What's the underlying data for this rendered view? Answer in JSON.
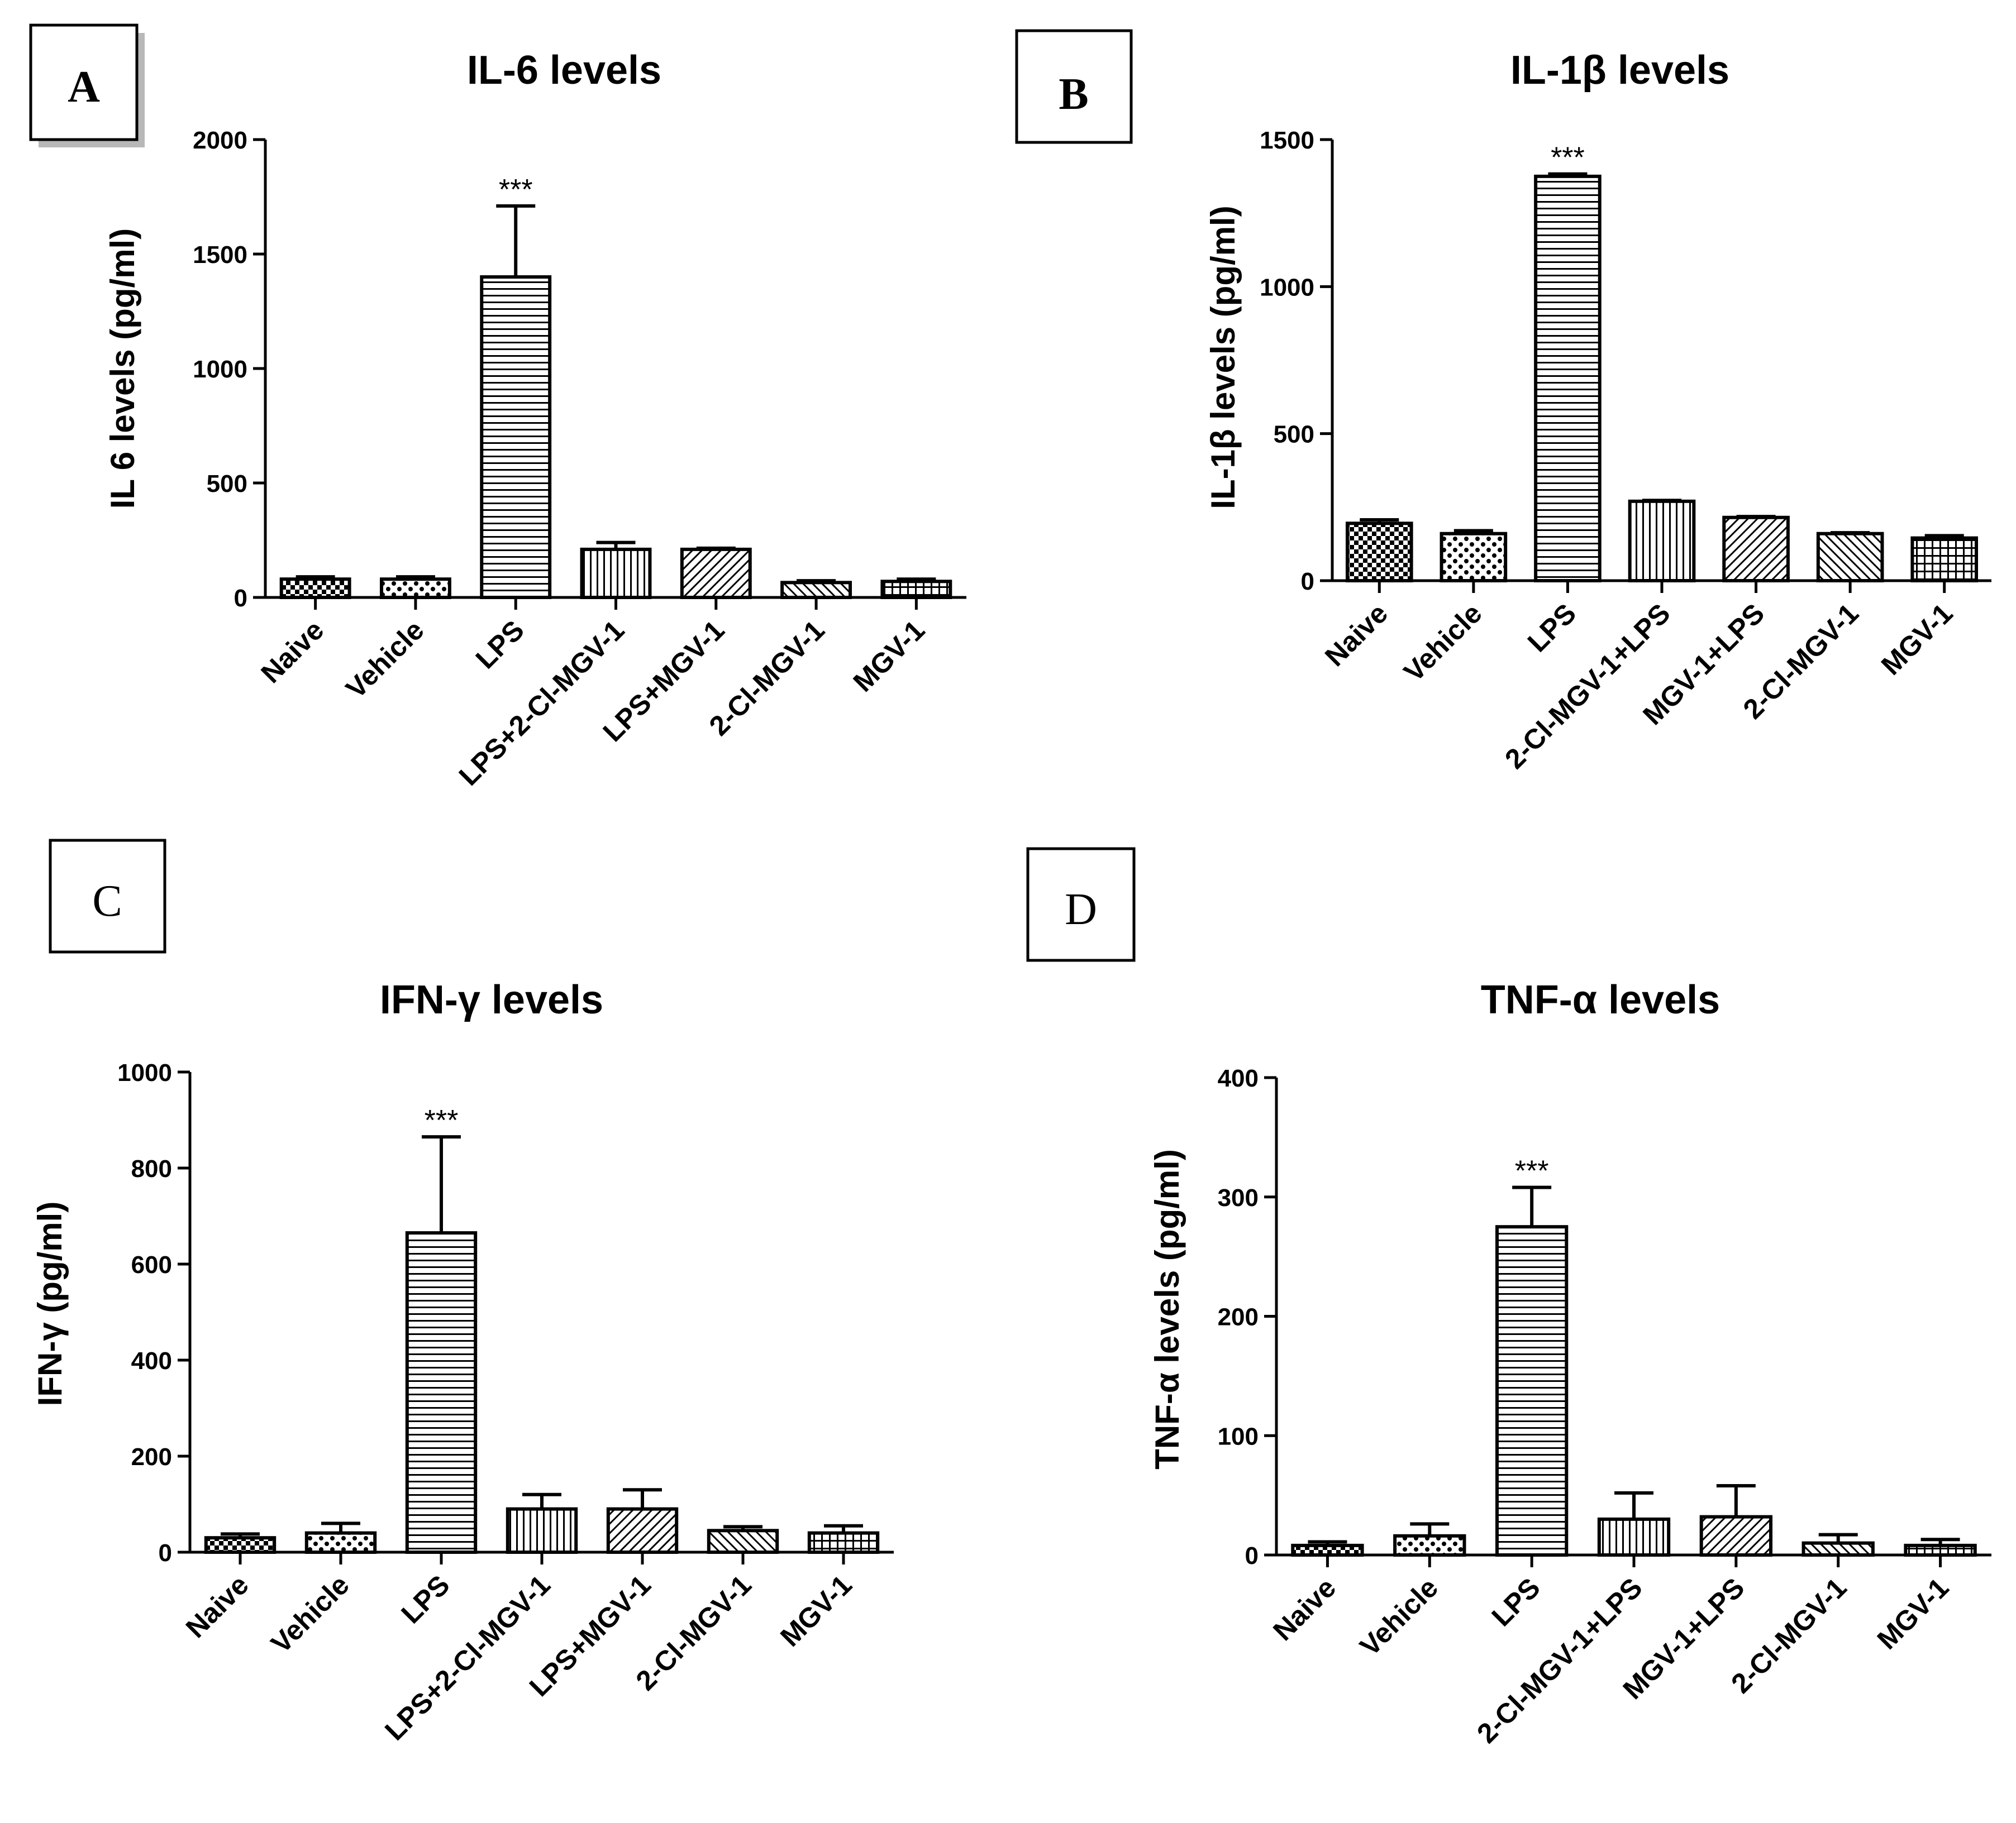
{
  "chart_data": [
    {
      "type": "bar",
      "panel_label": "A",
      "title": "IL-6 levels",
      "ylabel": "IL 6 levels (pg/ml)",
      "xlabel": "",
      "ylim": [
        0,
        2000
      ],
      "yticks": [
        0,
        500,
        1000,
        1500,
        2000
      ],
      "categories": [
        "Naive",
        "Vehicle",
        "LPS",
        "LPS+2-Cl-MGV-1",
        "LPS+MGV-1",
        "2-Cl-MGV-1",
        "MGV-1"
      ],
      "values": [
        80,
        80,
        1400,
        210,
        210,
        65,
        70
      ],
      "errors": [
        10,
        10,
        310,
        30,
        5,
        8,
        10
      ],
      "patterns": [
        "checker",
        "dots",
        "hlines",
        "vlines",
        "diag",
        "backdiag",
        "grid"
      ],
      "significance": [
        {
          "category": "LPS",
          "label": "***"
        }
      ]
    },
    {
      "type": "bar",
      "panel_label": "B",
      "title": "IL-1β levels",
      "ylabel": "IL-1β levels (pg/ml)",
      "xlabel": "",
      "ylim": [
        0,
        1500
      ],
      "yticks": [
        0,
        500,
        1000,
        1500
      ],
      "categories": [
        "Naive",
        "Vehicle",
        "LPS",
        "2-Cl-MGV-1+LPS",
        "MGV-1+LPS",
        "2-Cl-MGV-1",
        "MGV-1"
      ],
      "values": [
        195,
        160,
        1375,
        270,
        215,
        160,
        145
      ],
      "errors": [
        12,
        10,
        8,
        3,
        3,
        3,
        8
      ],
      "patterns": [
        "checker",
        "dots",
        "hlines",
        "vlines",
        "diag",
        "backdiag",
        "grid"
      ],
      "significance": [
        {
          "category": "LPS",
          "label": "***"
        }
      ]
    },
    {
      "type": "bar",
      "panel_label": "C",
      "title": "IFN-γ levels",
      "ylabel": "IFN-γ (pg/ml)",
      "xlabel": "",
      "ylim": [
        0,
        1000
      ],
      "yticks": [
        0,
        200,
        400,
        600,
        800,
        1000
      ],
      "categories": [
        "Naive",
        "Vehicle",
        "LPS",
        "LPS+2-Cl-MGV-1",
        "LPS+MGV-1",
        "2-Cl-MGV-1",
        "MGV-1"
      ],
      "values": [
        30,
        40,
        665,
        90,
        90,
        45,
        40
      ],
      "errors": [
        8,
        20,
        200,
        30,
        40,
        8,
        15
      ],
      "patterns": [
        "checker",
        "dots",
        "hlines",
        "vlines",
        "diag",
        "backdiag",
        "grid"
      ],
      "significance": [
        {
          "category": "LPS",
          "label": "***"
        }
      ]
    },
    {
      "type": "bar",
      "panel_label": "D",
      "title": "TNF-α levels",
      "ylabel": "TNF-α levels (pg/ml)",
      "xlabel": "",
      "ylim": [
        0,
        400
      ],
      "yticks": [
        0,
        100,
        200,
        300,
        400
      ],
      "categories": [
        "Naive",
        "Vehicle",
        "LPS",
        "2-Cl-MGV-1+LPS",
        "MGV-1+LPS",
        "2-Cl-MGV-1",
        "MGV-1"
      ],
      "values": [
        8,
        16,
        275,
        30,
        32,
        10,
        8
      ],
      "errors": [
        3,
        10,
        33,
        22,
        26,
        7,
        5
      ],
      "patterns": [
        "checker",
        "dots",
        "hlines",
        "vlines",
        "diag",
        "backdiag",
        "grid"
      ],
      "significance": [
        {
          "category": "LPS",
          "label": "***"
        }
      ]
    }
  ]
}
